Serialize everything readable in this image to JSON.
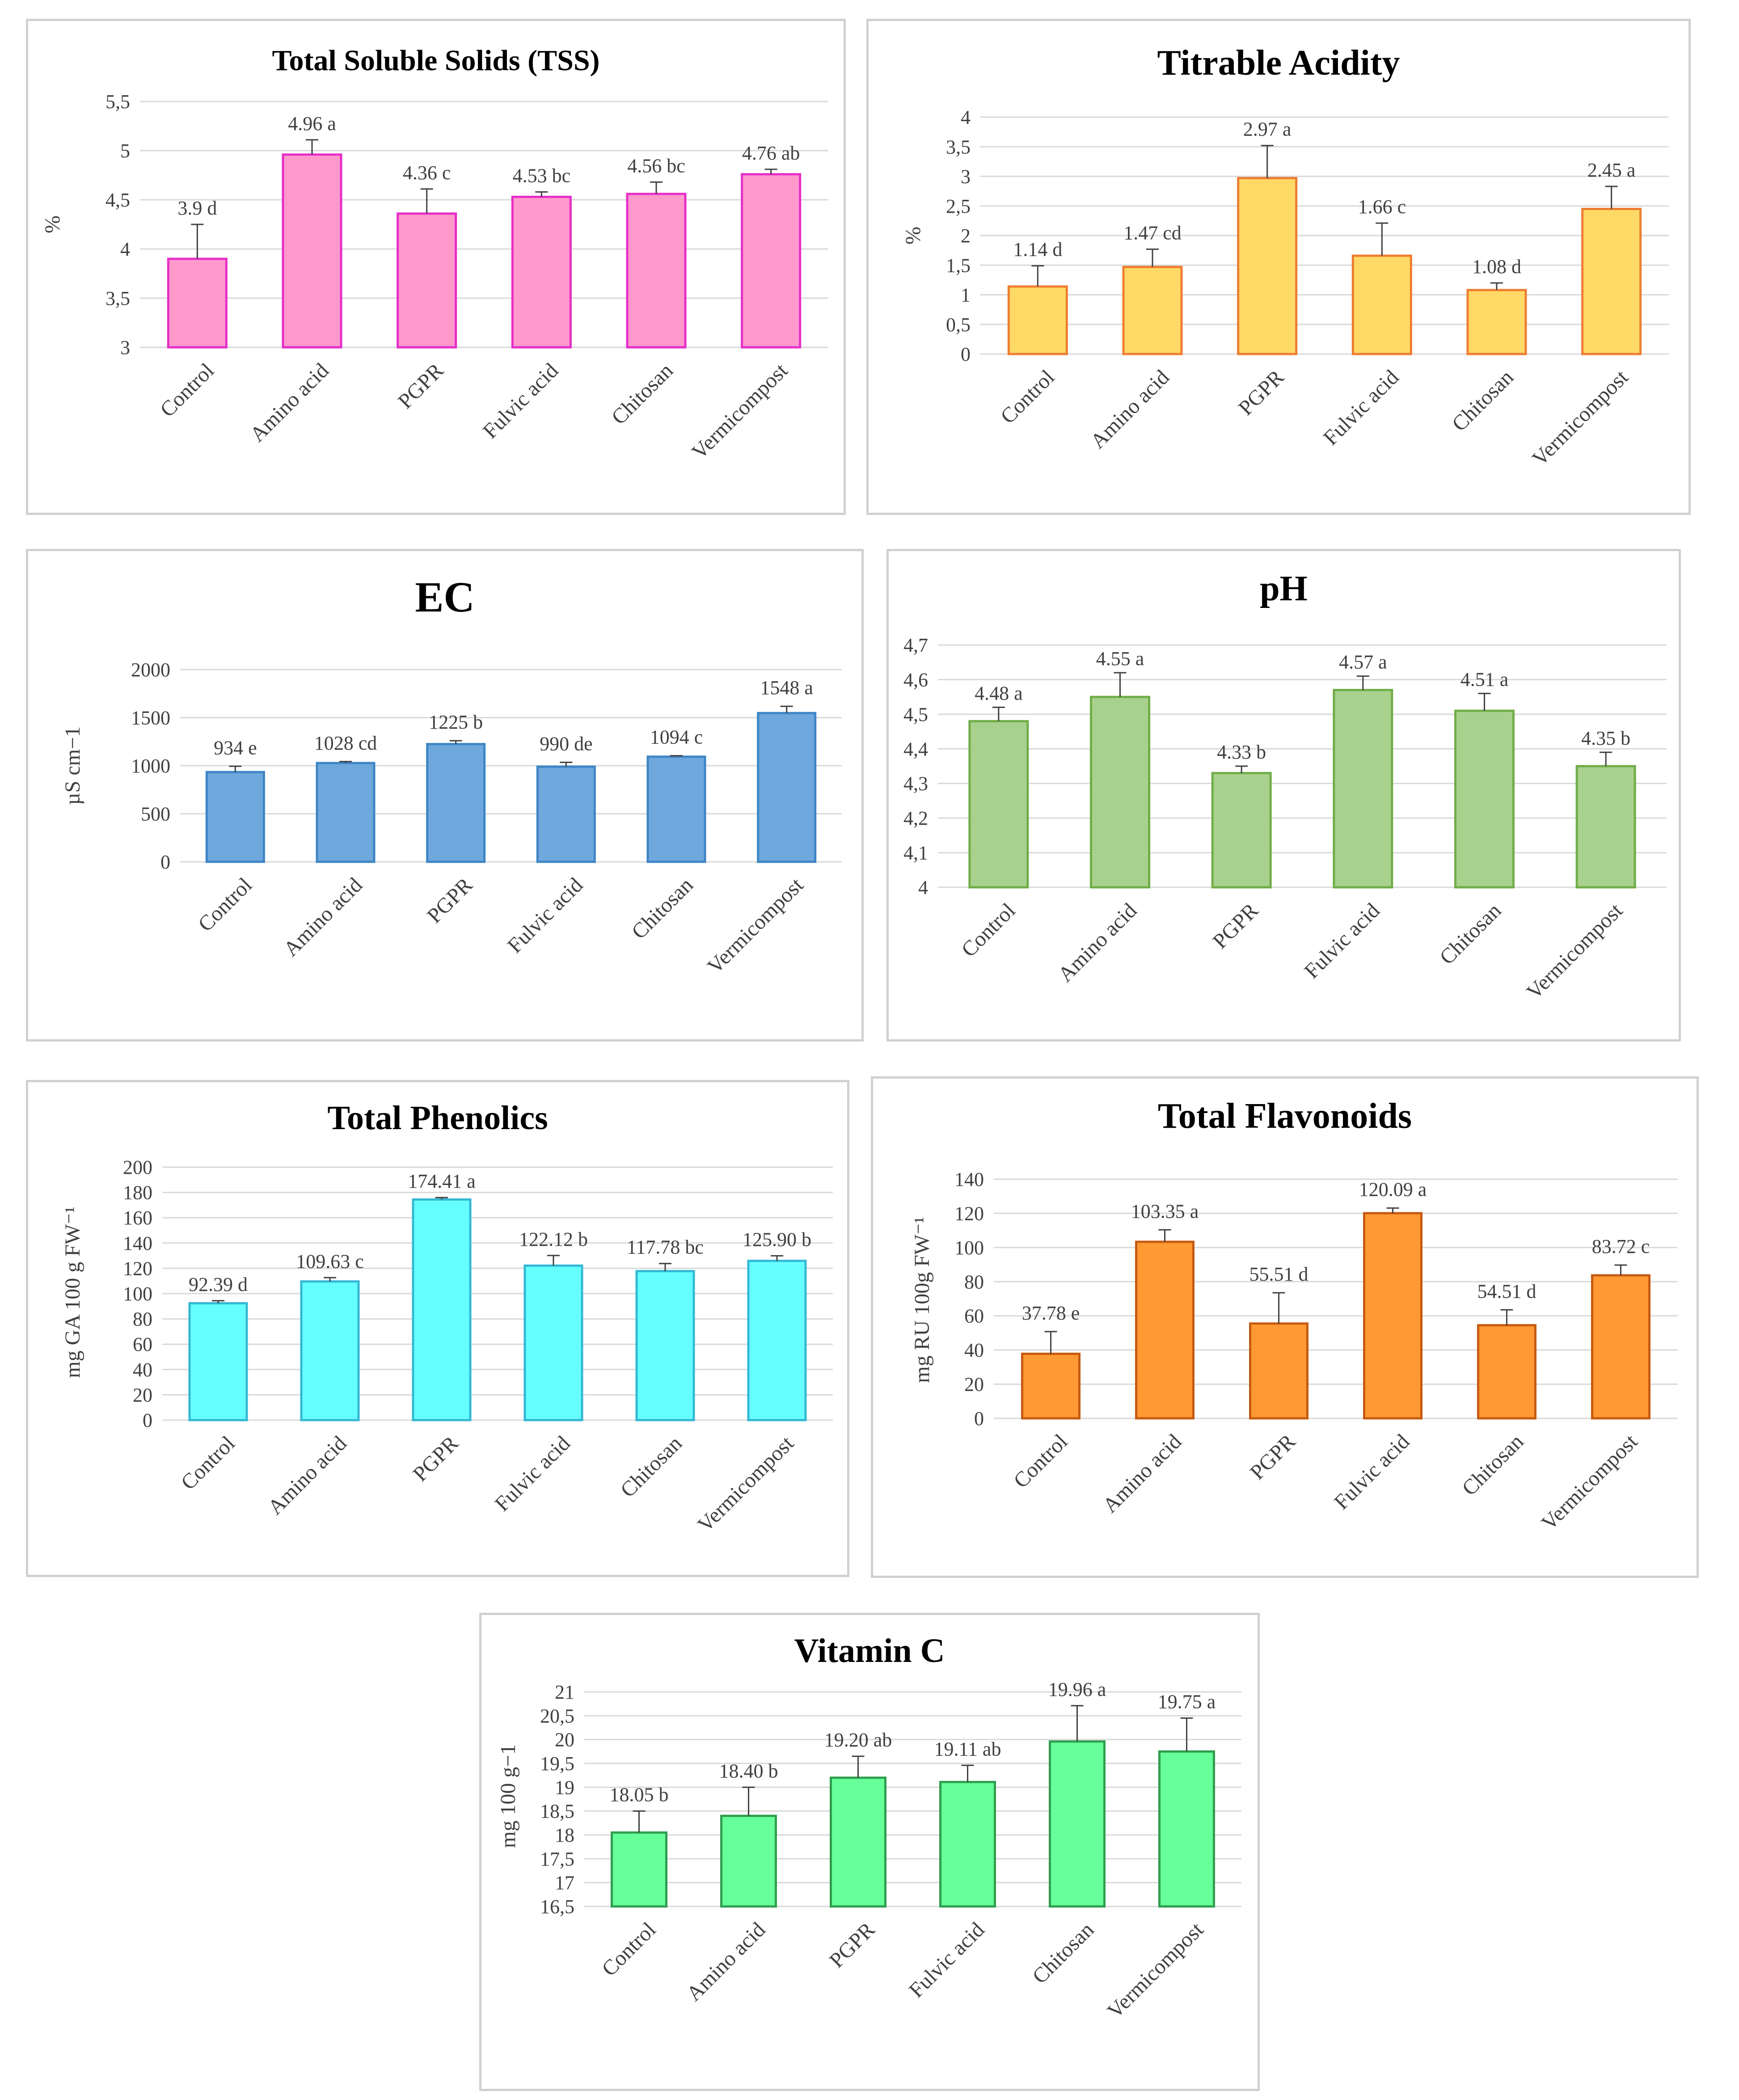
{
  "chart_data": [
    {
      "id": "tss",
      "type": "bar",
      "title": "Total Soluble Solids (TSS)",
      "ylabel": "%",
      "xlabel": "",
      "categories": [
        "Control",
        "Amino acid",
        "PGPR",
        "Fulvic acid",
        "Chitosan",
        "Vermicompost"
      ],
      "values": [
        3.9,
        4.96,
        4.36,
        4.53,
        4.56,
        4.76
      ],
      "errors": [
        0.35,
        0.15,
        0.25,
        0.05,
        0.12,
        0.05
      ],
      "labels": [
        "3.9 d",
        "4.96 a",
        "4.36 c",
        "4.53 bc",
        "4.56 bc",
        "4.76 ab"
      ],
      "ylim": [
        3,
        5.5
      ],
      "yticks": [
        "3",
        "3,5",
        "4",
        "4,5",
        "5",
        "5,5"
      ],
      "colors": {
        "fill": "#ff99cc",
        "edge": "#e62ec8"
      }
    },
    {
      "id": "ta",
      "type": "bar",
      "title": "Titrable Acidity",
      "ylabel": "%",
      "xlabel": "",
      "categories": [
        "Control",
        "Amino acid",
        "PGPR",
        "Fulvic acid",
        "Chitosan",
        "Vermicompost"
      ],
      "values": [
        1.14,
        1.47,
        2.97,
        1.66,
        1.08,
        2.45
      ],
      "errors": [
        0.35,
        0.3,
        0.55,
        0.55,
        0.12,
        0.38
      ],
      "labels": [
        "1.14 d",
        "1.47 cd",
        "2.97 a",
        "1.66 c",
        "1.08 d",
        "2.45 a"
      ],
      "ylim": [
        0,
        4
      ],
      "yticks": [
        "0",
        "0,5",
        "1",
        "1,5",
        "2",
        "2,5",
        "3",
        "3,5",
        "4"
      ],
      "colors": {
        "fill": "#ffd966",
        "edge": "#ed7d31"
      }
    },
    {
      "id": "ec",
      "type": "bar",
      "title": "EC",
      "ylabel": "µS cm−1",
      "xlabel": "",
      "categories": [
        "Control",
        "Amino acid",
        "PGPR",
        "Fulvic acid",
        "Chitosan",
        "Vermicompost"
      ],
      "values": [
        934,
        1028,
        1225,
        990,
        1094,
        1548
      ],
      "errors": [
        60,
        15,
        35,
        45,
        10,
        70
      ],
      "labels": [
        "934 e",
        "1028 cd",
        "1225 b",
        "990 de",
        "1094 c",
        "1548 a"
      ],
      "ylim": [
        0,
        2000
      ],
      "yticks": [
        "0",
        "500",
        "1000",
        "1500",
        "2000"
      ],
      "colors": {
        "fill": "#6fa8dc",
        "edge": "#3d85c6"
      }
    },
    {
      "id": "ph",
      "type": "bar",
      "title": "pH",
      "ylabel": "",
      "xlabel": "",
      "categories": [
        "Control",
        "Amino acid",
        "PGPR",
        "Fulvic acid",
        "Chitosan",
        "Vermicompost"
      ],
      "values": [
        4.48,
        4.55,
        4.33,
        4.57,
        4.51,
        4.35
      ],
      "errors": [
        0.04,
        0.07,
        0.02,
        0.04,
        0.05,
        0.04
      ],
      "labels": [
        "4.48 a",
        "4.55 a",
        "4.33 b",
        "4.57 a",
        "4.51 a",
        "4.35 b"
      ],
      "ylim": [
        4,
        4.7
      ],
      "yticks": [
        "4",
        "4,1",
        "4,2",
        "4,3",
        "4,4",
        "4,5",
        "4,6",
        "4,7"
      ],
      "colors": {
        "fill": "#a9d18e",
        "edge": "#70ad47"
      }
    },
    {
      "id": "phenolics",
      "type": "bar",
      "title": "Total Phenolics",
      "ylabel": "mg GA 100 g FW⁻¹",
      "xlabel": "",
      "categories": [
        "Control",
        "Amino acid",
        "PGPR",
        "Fulvic acid",
        "Chitosan",
        "Vermicompost"
      ],
      "values": [
        92.39,
        109.63,
        174.41,
        122.12,
        117.78,
        125.9
      ],
      "errors": [
        2,
        3,
        1.5,
        8,
        6,
        4
      ],
      "labels": [
        "92.39 d",
        "109.63 c",
        "174.41 a",
        "122.12 b",
        "117.78 bc",
        "125.90 b"
      ],
      "ylim": [
        0,
        200
      ],
      "yticks": [
        "0",
        "20",
        "40",
        "60",
        "80",
        "100",
        "120",
        "140",
        "160",
        "180",
        "200"
      ],
      "colors": {
        "fill": "#66ffff",
        "edge": "#33b8d4"
      }
    },
    {
      "id": "flavonoids",
      "type": "bar",
      "title": "Total Flavonoids",
      "ylabel": "mg RU 100g FW⁻¹",
      "xlabel": "",
      "categories": [
        "Control",
        "Amino acid",
        "PGPR",
        "Fulvic acid",
        "Chitosan",
        "Vermicompost"
      ],
      "values": [
        37.78,
        103.35,
        55.51,
        120.09,
        54.51,
        83.72
      ],
      "errors": [
        13,
        7,
        18,
        3,
        9,
        6
      ],
      "labels": [
        "37.78 e",
        "103.35 a",
        "55.51 d",
        "120.09 a",
        "54.51 d",
        "83.72 c"
      ],
      "ylim": [
        0,
        140
      ],
      "yticks": [
        "0",
        "20",
        "40",
        "60",
        "80",
        "100",
        "120",
        "140"
      ],
      "colors": {
        "fill": "#ff9933",
        "edge": "#c55a11"
      }
    },
    {
      "id": "vitc",
      "type": "bar",
      "title": "Vitamin C",
      "ylabel": "mg 100 g−1",
      "xlabel": "",
      "categories": [
        "Control",
        "Amino acid",
        "PGPR",
        "Fulvic acid",
        "Chitosan",
        "Vermicompost"
      ],
      "values": [
        18.05,
        18.4,
        19.2,
        19.11,
        19.96,
        19.75
      ],
      "errors": [
        0.45,
        0.6,
        0.45,
        0.35,
        0.75,
        0.7
      ],
      "labels": [
        "18.05 b",
        "18.40 b",
        "19.20 ab",
        "19.11 ab",
        "19.96 a",
        "19.75 a"
      ],
      "ylim": [
        16.5,
        21
      ],
      "yticks": [
        "16,5",
        "17",
        "17,5",
        "18",
        "18,5",
        "19",
        "19,5",
        "20",
        "20,5",
        "21"
      ],
      "colors": {
        "fill": "#66ff99",
        "edge": "#2f9e4f"
      }
    }
  ]
}
